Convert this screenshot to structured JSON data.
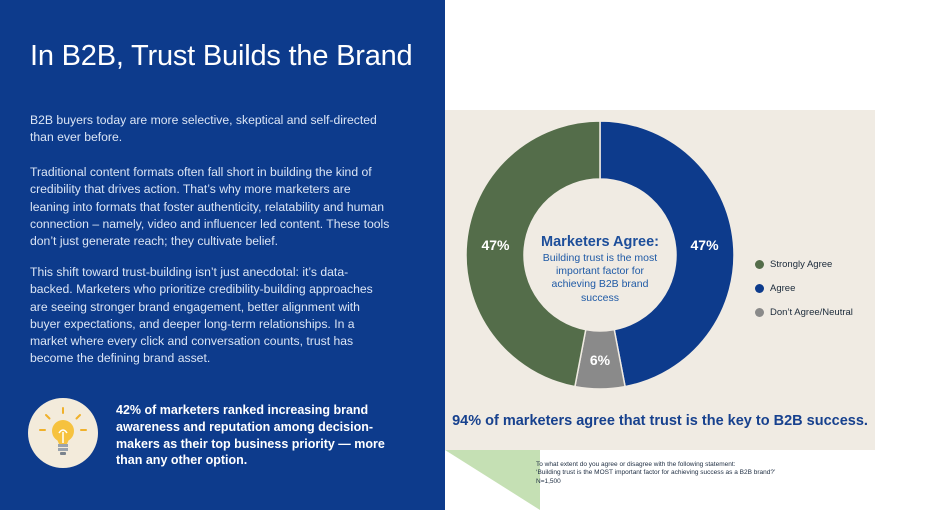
{
  "title": "In B2B, Trust Builds the Brand",
  "paragraphs": [
    "B2B buyers today are more selective, skeptical and self-directed than ever before.",
    "Traditional content formats often fall short in building the kind of credibility that drives action. That’s why more marketers are leaning into formats that foster authenticity, relatability and human connection – namely, video and influencer led content. These tools don’t just generate reach; they cultivate belief.",
    "This shift toward trust-building isn’t just anecdotal: it’s data-backed. Marketers who prioritize credibility-building approaches are seeing stronger brand engagement, better alignment with buyer expectations, and deeper long-term relationships. In a market where every click and conversation counts, trust has become the defining brand asset."
  ],
  "callout": "42% of marketers ranked increasing brand awareness and reputation among decision-makers as their top business priority — more than any other option.",
  "icons": {
    "callout": "lightbulb-icon"
  },
  "chart_data": {
    "type": "pie",
    "donut": true,
    "center_title": "Marketers Agree:",
    "center_text": "Building trust is the most important factor for achieving B2B brand success",
    "slices": [
      {
        "label": "Agree",
        "value": 47,
        "display": "47%",
        "color": "#0d3b8c"
      },
      {
        "label": "Don’t Agree/Neutral",
        "value": 6,
        "display": "6%",
        "color": "#8a8a8a"
      },
      {
        "label": "Strongly Agree",
        "value": 47,
        "display": "47%",
        "color": "#546d4a"
      }
    ],
    "legend": [
      {
        "label": "Strongly Agree",
        "color": "#546d4a"
      },
      {
        "label": "Agree",
        "color": "#0d3b8c"
      },
      {
        "label": "Don’t Agree/Neutral",
        "color": "#8a8a8a"
      }
    ],
    "legend_position": "right"
  },
  "summary": "94% of marketers agree that trust is the key to B2B success.",
  "footnote": {
    "line1": "To what extent do you agree or disagree with the following statement:",
    "line2": "‘Building trust is the MOST important factor for achieving success as a B2B brand?’",
    "line3": "N=1,500"
  },
  "colors": {
    "background": "#0d3b8c",
    "card": "#f0ebe3",
    "accent_green": "#c5e0b4"
  }
}
